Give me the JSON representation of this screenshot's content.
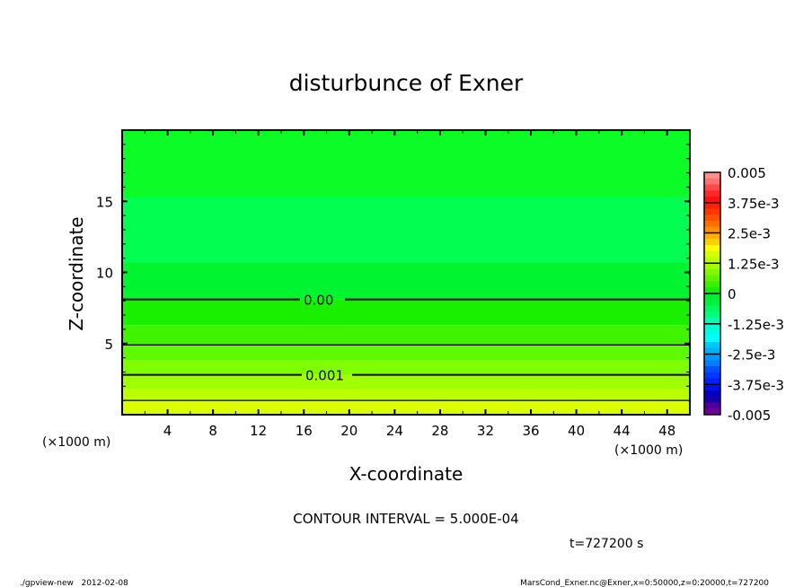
{
  "chart_data": {
    "type": "heatmap",
    "title": "disturbunce of Exner",
    "xlabel": "X-coordinate",
    "ylabel": "Z-coordinate",
    "x_unit": "(×1000 m)",
    "y_unit": "(×1000 m)",
    "xlim": [
      0,
      50
    ],
    "ylim": [
      0,
      20
    ],
    "x_ticks": [
      4,
      8,
      12,
      16,
      20,
      24,
      28,
      32,
      36,
      40,
      44,
      48
    ],
    "y_ticks": [
      5,
      10,
      15
    ],
    "bands": [
      {
        "z_from": 15.3,
        "z_to": 20,
        "color": "#0cfc28"
      },
      {
        "z_from": 10.7,
        "z_to": 15.3,
        "color": "#00ff50"
      },
      {
        "z_from": 8.1,
        "z_to": 10.7,
        "color": "#00f530"
      },
      {
        "z_from": 6.3,
        "z_to": 8.1,
        "color": "#18f000"
      },
      {
        "z_from": 4.9,
        "z_to": 6.3,
        "color": "#40f400"
      },
      {
        "z_from": 3.8,
        "z_to": 4.9,
        "color": "#60fa00"
      },
      {
        "z_from": 2.8,
        "z_to": 3.8,
        "color": "#80ff00"
      },
      {
        "z_from": 1.8,
        "z_to": 2.8,
        "color": "#a0ff00"
      },
      {
        "z_from": 1.0,
        "z_to": 1.8,
        "color": "#bcff00"
      },
      {
        "z_from": 0,
        "z_to": 1.0,
        "color": "#dcff00"
      }
    ],
    "contours": [
      {
        "level": 0.0,
        "z": 8.1,
        "label": "0.00"
      },
      {
        "level": 0.0005,
        "z": 4.9
      },
      {
        "level": 0.001,
        "z": 2.8,
        "label": "0.001"
      },
      {
        "level": 0.0015,
        "z": 1.0
      }
    ],
    "colorbar": {
      "range": [
        -0.005,
        0.005
      ],
      "tick_labels": [
        "0.005",
        "3.75e-3",
        "2.5e-3",
        "1.25e-3",
        "0",
        "-1.25e-3",
        "-2.5e-3",
        "-3.75e-3",
        "-0.005"
      ],
      "colors": [
        "#ff9090",
        "#ff7070",
        "#ff4848",
        "#ff2828",
        "#ff1010",
        "#ff2000",
        "#ff3800",
        "#ff5000",
        "#ff7000",
        "#ff9000",
        "#ffb000",
        "#ffd000",
        "#ffff00",
        "#d8ff00",
        "#b8ff00",
        "#a0ff00",
        "#80f800",
        "#60f400",
        "#38f000",
        "#10f000",
        "#00f030",
        "#00f040",
        "#00f860",
        "#00ff78",
        "#00ffb0",
        "#00ffd0",
        "#00ffe8",
        "#00fff8",
        "#00c8ff",
        "#00b0ff",
        "#0098ff",
        "#0080ff",
        "#0050ff",
        "#0038ff",
        "#0020ff",
        "#0010f0",
        "#0000c0",
        "#1800a8",
        "#480098",
        "#700098"
      ]
    },
    "contour_interval": "CONTOUR INTERVAL = 5.000E-04",
    "time_label": "t=727200 s"
  },
  "footer": {
    "left": "./gpview-new   2012-02-08",
    "right": "MarsCond_Exner.nc@Exner,x=0:50000,z=0:20000,t=727200"
  }
}
